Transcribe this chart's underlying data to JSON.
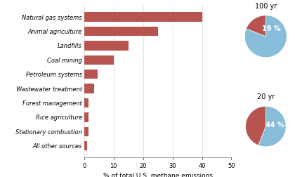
{
  "categories": [
    "Natural gas systems",
    "Animal agriculture",
    "Landfills",
    "Coal mining",
    "Petroleum systems",
    "Wastewater treatment",
    "Forest management",
    "Rice agriculture",
    "Stationary combustion",
    "All other sources"
  ],
  "values": [
    40,
    25,
    15,
    10,
    4.5,
    3.5,
    1.5,
    1.5,
    1.5,
    1.0
  ],
  "bar_color": "#b85450",
  "pie_red": "#b85450",
  "pie_blue": "#87bdd8",
  "xlabel": "% of total U.S. methane emissions",
  "xlim": [
    0,
    50
  ],
  "xticks": [
    0,
    10,
    20,
    30,
    40,
    50
  ],
  "pie1_label": "100 yr",
  "pie2_label": "20 yr",
  "pie1_red_pct": 19,
  "pie2_red_pct": 44,
  "pie1_text": "19 %",
  "pie2_text": "44 %",
  "bg_color": "#ffffff",
  "label_fontsize": 6.0,
  "tick_fontsize": 6.0,
  "xlabel_fontsize": 6.5,
  "pie_title_fontsize": 7.0,
  "pie_pct_fontsize": 7.0
}
